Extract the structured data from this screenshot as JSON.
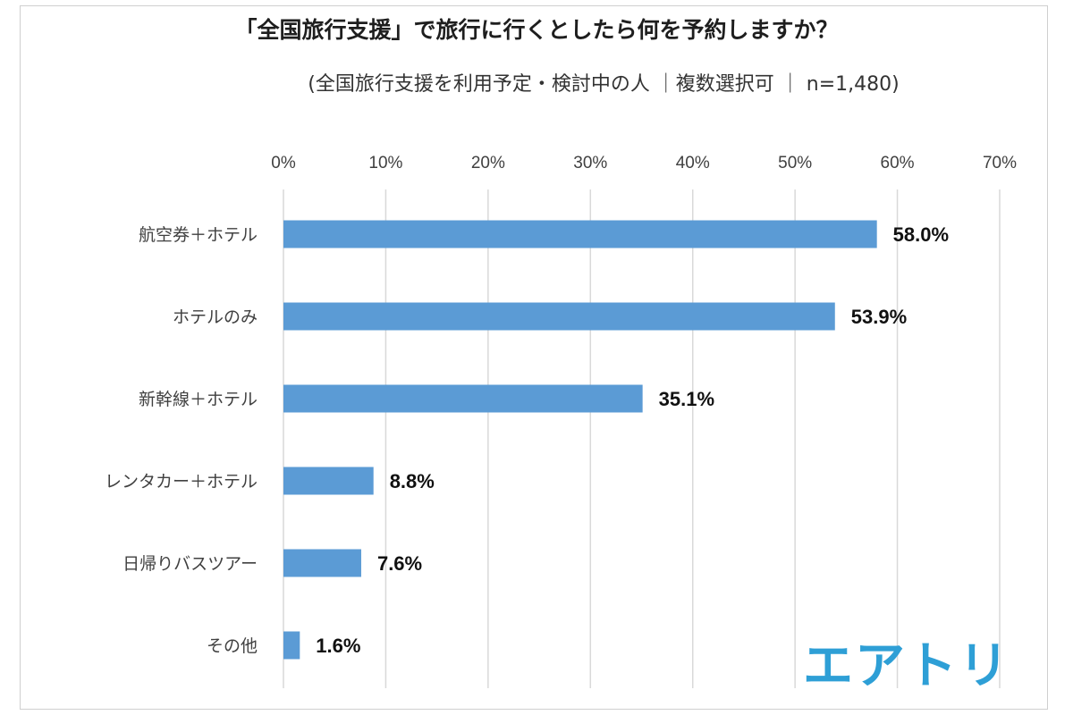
{
  "chart_data": {
    "type": "bar",
    "orientation": "horizontal",
    "title": "「全国旅行支援」で旅行に行くとしたら何を予約しますか？",
    "subtitle": "(全国旅行支援を利用予定・検討中の人 ｜複数選択可 ｜ n=1,480)",
    "categories": [
      "航空券＋ホテル",
      "ホテルのみ",
      "新幹線＋ホテル",
      "レンタカー＋ホテル",
      "日帰りバスツアー",
      "その他"
    ],
    "values": [
      58.0,
      53.9,
      35.1,
      8.8,
      7.6,
      1.6
    ],
    "value_labels": [
      "58.0%",
      "53.9%",
      "35.1%",
      "8.8%",
      "7.6%",
      "1.6%"
    ],
    "xlim": [
      0,
      70
    ],
    "x_ticks": [
      "0%",
      "10%",
      "20%",
      "30%",
      "40%",
      "50%",
      "60%",
      "70%"
    ],
    "x_tick_values": [
      0,
      10,
      20,
      30,
      40,
      50,
      60,
      70
    ],
    "axis_position": "top",
    "grid": true,
    "bar_color": "#5b9bd5",
    "grid_color": "#d9d9d9"
  },
  "logo_text": "エアトリ",
  "logo_color": "#2e9fd6"
}
